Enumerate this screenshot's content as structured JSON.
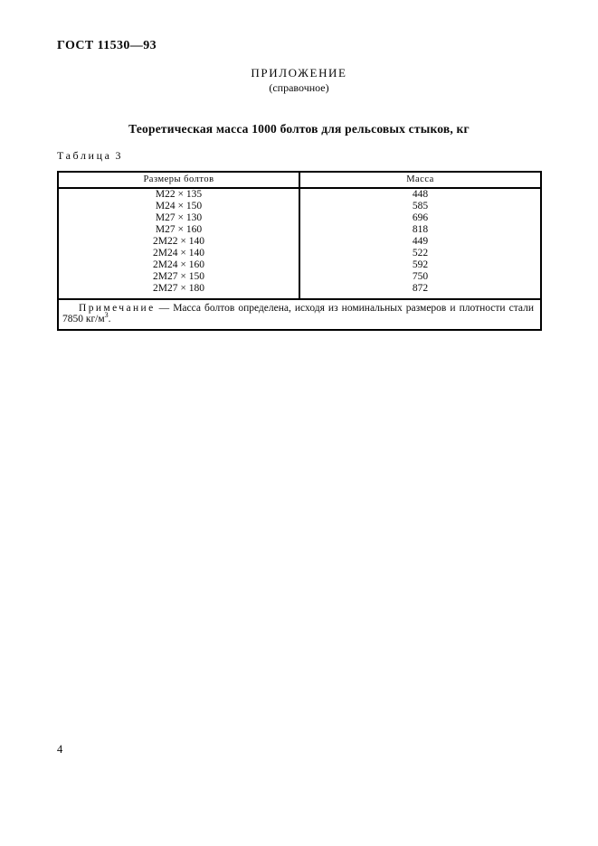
{
  "page": {
    "doc_code": "ГОСТ 11530—93",
    "appendix_label": "ПРИЛОЖЕНИЕ",
    "appendix_type": "(справочное)",
    "title": "Теоретическая масса 1000 болтов для рельсовых стыков, кг",
    "page_number": "4"
  },
  "table": {
    "caption_word": "Таблица",
    "caption_number": "3",
    "columns": [
      "Размеры болтов",
      "Масса"
    ],
    "rows": [
      {
        "size": "М22 × 135",
        "mass": "448"
      },
      {
        "size": "М24 × 150",
        "mass": "585"
      },
      {
        "size": "М27 × 130",
        "mass": "696"
      },
      {
        "size": "М27 × 160",
        "mass": "818"
      },
      {
        "size": "2М22 × 140",
        "mass": "449"
      },
      {
        "size": "2М24 × 140",
        "mass": "522"
      },
      {
        "size": "2М24 × 160",
        "mass": "592"
      },
      {
        "size": "2М27 × 150",
        "mass": "750"
      },
      {
        "size": "2М27 × 180",
        "mass": "872"
      }
    ],
    "note": {
      "label": "Примечание",
      "text1": " — Масса болтов определена, исходя из номинальных размеров и плотности стали",
      "text2": "7850 кг/м",
      "sup": "3",
      "period": "."
    }
  }
}
